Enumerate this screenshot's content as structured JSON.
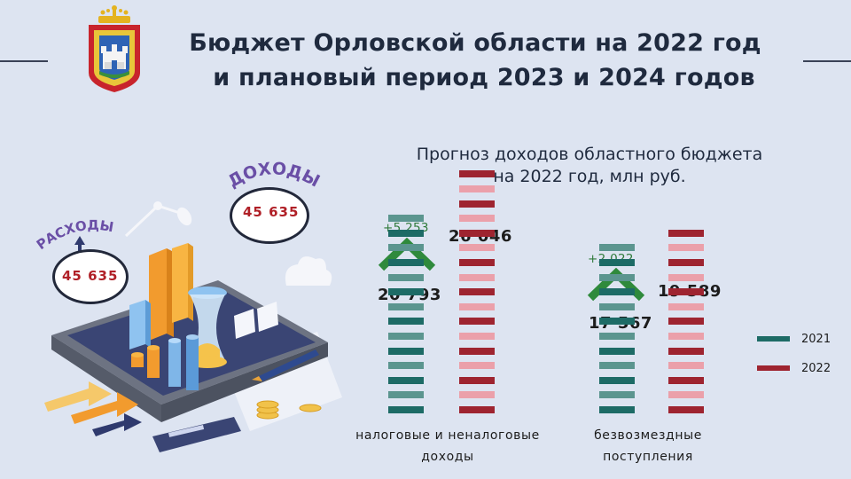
{
  "header": {
    "title_line1": "Бюджет Орловской области на 2022 год",
    "title_line2": "и плановый период 2023 и 2024 годов"
  },
  "illustration": {
    "expenses_label": "РАСХОДЫ",
    "expenses_value": "45 635",
    "income_label": "ДОХОДЫ",
    "income_value": "45 635"
  },
  "chart_subtitle_line1": "Прогноз доходов областного бюджета",
  "chart_subtitle_line2": "на 2022 год, млн руб.",
  "chart_data": {
    "type": "bar",
    "title": "Прогноз доходов областного бюджета на 2022 год, млн руб.",
    "categories": [
      "налоговые и неналоговые доходы",
      "безвозмездные поступления"
    ],
    "series": [
      {
        "name": "2021",
        "values": [
          20793,
          17567
        ],
        "labels": [
          "20 793",
          "17 567"
        ],
        "color": "#1d6b66"
      },
      {
        "name": "2022",
        "values": [
          26046,
          19589
        ],
        "labels": [
          "26 046",
          "19 589"
        ],
        "color": "#9e2430"
      }
    ],
    "deltas": [
      "+5 253",
      "+2 022"
    ],
    "legend": "right",
    "category_line1": [
      "налоговые и неналоговые",
      "безвозмездные"
    ],
    "category_line2": [
      "доходы",
      "поступления"
    ]
  },
  "colors": {
    "background": "#dde4f1",
    "series_2021_dark": "#1d6b66",
    "series_2021_light": "#5b958f",
    "series_2022_dark": "#9e2430",
    "series_2022_light": "#eba0aa",
    "delta_arrow": "#2f8a3c"
  }
}
